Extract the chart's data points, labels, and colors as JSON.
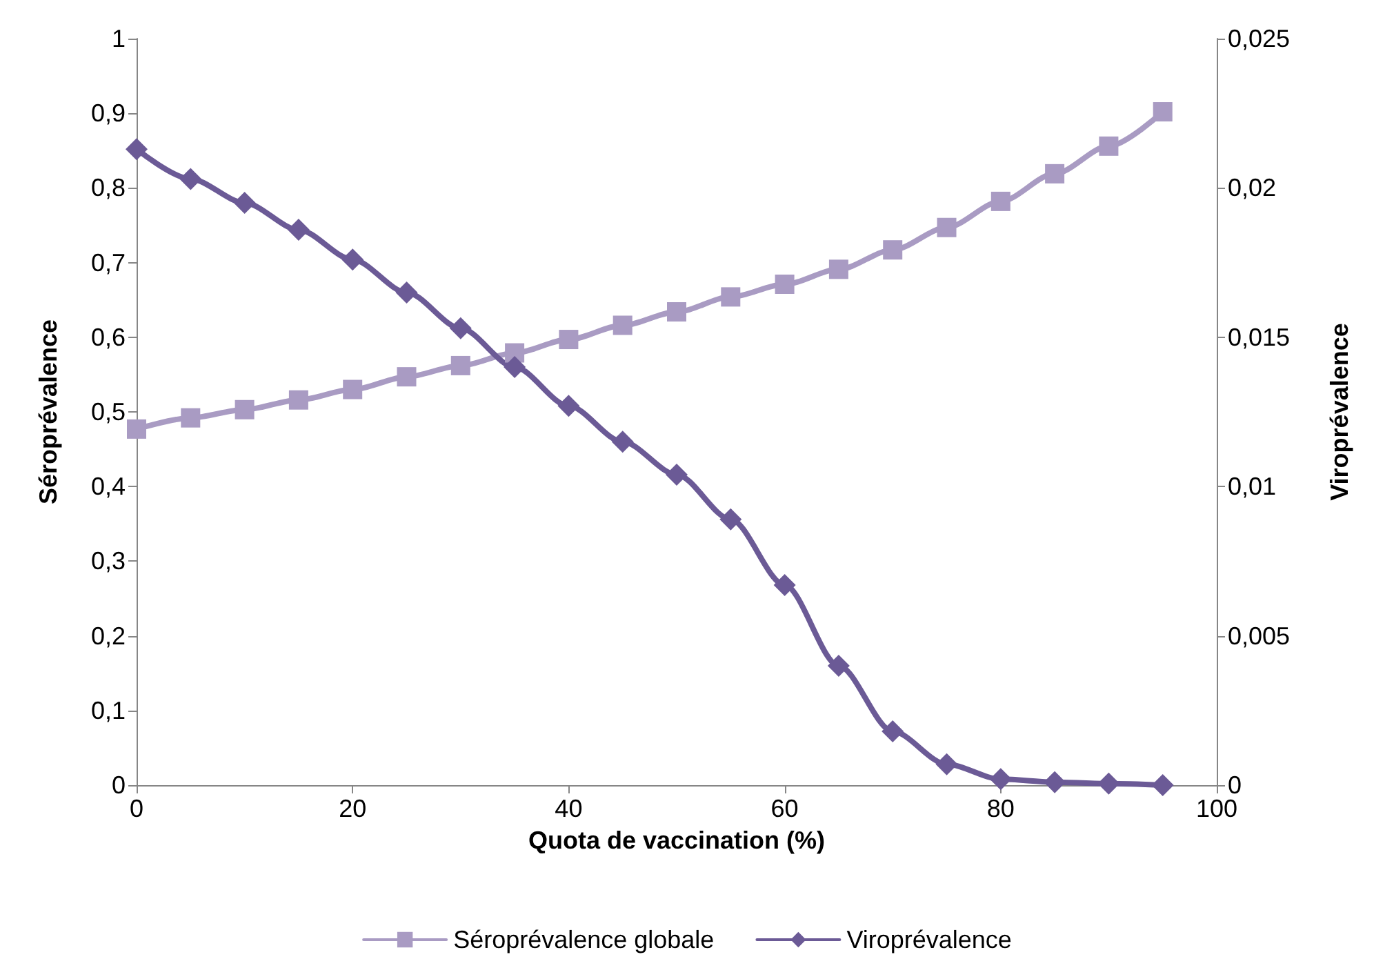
{
  "chart_data": {
    "type": "line",
    "xlabel": "Quota de vaccination (%)",
    "ylabel": "Séroprévalence",
    "y2label": "Viroprévalence",
    "x": [
      0,
      5,
      10,
      15,
      20,
      25,
      30,
      35,
      40,
      45,
      50,
      55,
      60,
      65,
      70,
      75,
      80,
      85,
      90,
      95
    ],
    "series": [
      {
        "name": "Séroprévalence globale",
        "color": "#a99bc3",
        "marker": "square",
        "values": [
          0.477,
          0.492,
          0.503,
          0.516,
          0.53,
          0.547,
          0.562,
          0.579,
          0.597,
          0.616,
          0.634,
          0.654,
          0.671,
          0.691,
          0.717,
          0.747,
          0.782,
          0.819,
          0.856,
          0.902
        ]
      },
      {
        "name": "Viroprévalence",
        "color": "#6b5a96",
        "marker": "diamond",
        "axis": "y2",
        "values": [
          0.0213,
          0.0203,
          0.0195,
          0.0186,
          0.0176,
          0.0165,
          0.0153,
          0.014,
          0.0127,
          0.0115,
          0.0104,
          0.0089,
          0.0067,
          0.004,
          0.0018,
          0.0007,
          0.0002,
          0.0001,
          5e-05,
          0
        ]
      }
    ],
    "xlim": [
      0,
      100
    ],
    "xticks": [
      0,
      20,
      40,
      60,
      80,
      100
    ],
    "ylim": [
      0,
      1
    ],
    "yticks": [
      0,
      {
        "value": 0.1,
        "label": "0,1"
      },
      {
        "value": 0.2,
        "label": "0,2"
      },
      {
        "value": 0.3,
        "label": "0,3"
      },
      {
        "value": 0.4,
        "label": "0,4"
      },
      {
        "value": 0.5,
        "label": "0,5"
      },
      {
        "value": 0.6,
        "label": "0,6"
      },
      {
        "value": 0.7,
        "label": "0,7"
      },
      {
        "value": 0.8,
        "label": "0,8"
      },
      {
        "value": 0.9,
        "label": "0,9"
      },
      1
    ],
    "y2lim": [
      0,
      0.025
    ],
    "y2ticks": [
      0,
      {
        "value": 0.005,
        "label": "0,005"
      },
      {
        "value": 0.01,
        "label": "0,01"
      },
      {
        "value": 0.015,
        "label": "0,015"
      },
      {
        "value": 0.02,
        "label": "0,02"
      },
      {
        "value": 0.025,
        "label": "0,025"
      }
    ],
    "grid": false,
    "legend": "bottom",
    "line_style": "solid"
  }
}
